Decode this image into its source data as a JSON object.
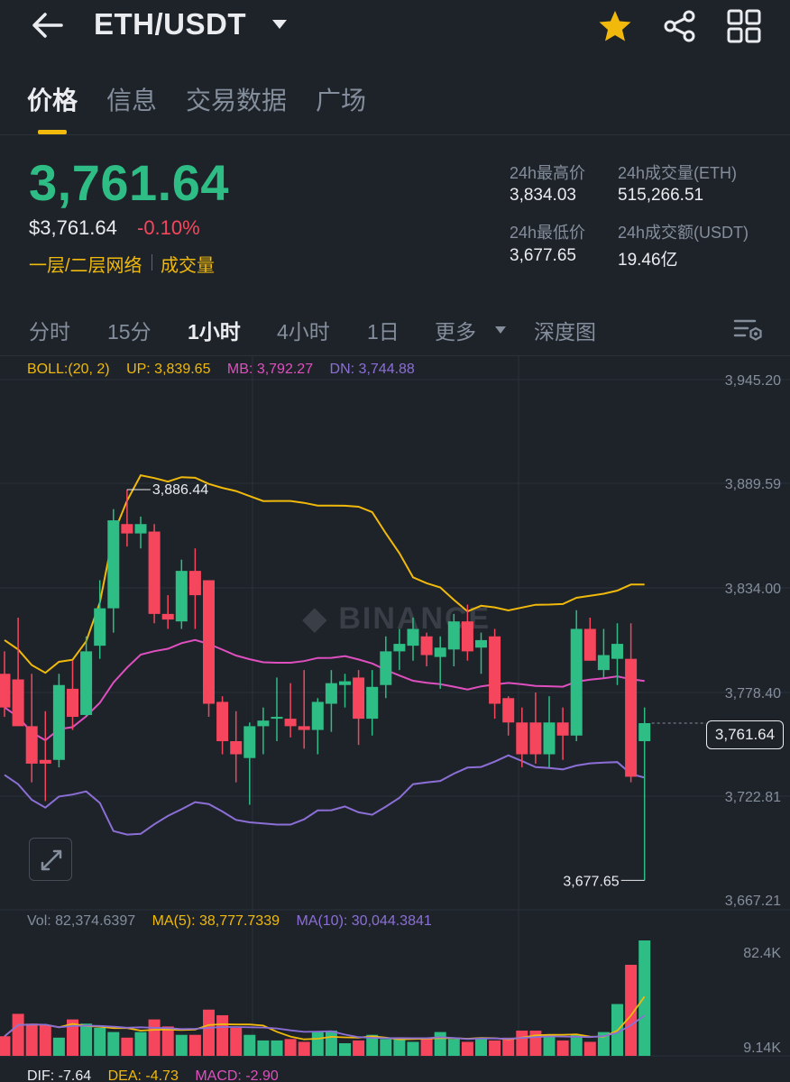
{
  "header": {
    "pair": "ETH/USDT",
    "icons": [
      "back-arrow-icon",
      "caret-down-icon",
      "star-icon",
      "share-icon",
      "grid-icon"
    ],
    "star_color": "#f0b90b"
  },
  "tabs": [
    {
      "label": "价格",
      "active": true
    },
    {
      "label": "信息",
      "active": false
    },
    {
      "label": "交易数据",
      "active": false
    },
    {
      "label": "广场",
      "active": false
    }
  ],
  "price": {
    "last": "3,761.64",
    "usd": "$3,761.64",
    "change": "-0.10%",
    "tag_network": "一层/二层网络",
    "tag_volume": "成交量"
  },
  "stats": {
    "high_label": "24h最高价",
    "high_value": "3,834.03",
    "low_label": "24h最低价",
    "low_value": "3,677.65",
    "vol_eth_label": "24h成交量(ETH)",
    "vol_eth_value": "515,266.51",
    "vol_usdt_label": "24h成交额(USDT)",
    "vol_usdt_value": "19.46亿"
  },
  "intervals": [
    {
      "label": "分时",
      "active": false
    },
    {
      "label": "15分",
      "active": false
    },
    {
      "label": "1小时",
      "active": true
    },
    {
      "label": "4小时",
      "active": false
    },
    {
      "label": "1日",
      "active": false
    },
    {
      "label": "更多",
      "active": false
    },
    {
      "label": "深度图",
      "active": false
    }
  ],
  "indicators": {
    "boll": "BOLL:(20, 2)",
    "up": "UP: 3,839.65",
    "mb": "MB: 3,792.27",
    "dn": "DN: 3,744.88",
    "vol": "Vol: 82,374.6397",
    "ma5": "MA(5): 38,777.7339",
    "ma10": "MA(10): 30,044.3841",
    "dif": "DIF: -7.64",
    "dea": "DEA: -4.73",
    "macd": "MACD: -2.90"
  },
  "colors": {
    "up": "#2ebd85",
    "down": "#f6465d",
    "accent": "#f0b90b",
    "mb": "#e04fbf",
    "dn": "#8c6fd6",
    "bg": "#1e2329"
  },
  "watermark": "BINANCE",
  "chart_data": {
    "type": "candlestick",
    "price_axis": [
      "3,945.20",
      "3,889.59",
      "3,834.00",
      "3,778.40",
      "3,722.81",
      "3,667.21"
    ],
    "ylim": [
      3667.21,
      3945.2
    ],
    "high_marker": "3,886.44",
    "low_marker": "3,677.65",
    "last_price_label": "3,761.64",
    "volume_axis": [
      "82.4K",
      "9.14K"
    ],
    "candles": [
      {
        "o": 3788,
        "h": 3800,
        "l": 3765,
        "c": 3770
      },
      {
        "o": 3785,
        "h": 3818,
        "l": 3762,
        "c": 3760
      },
      {
        "o": 3760,
        "h": 3788,
        "l": 3730,
        "c": 3740
      },
      {
        "o": 3742,
        "h": 3768,
        "l": 3720,
        "c": 3740
      },
      {
        "o": 3742,
        "h": 3788,
        "l": 3738,
        "c": 3782
      },
      {
        "o": 3780,
        "h": 3795,
        "l": 3758,
        "c": 3765
      },
      {
        "o": 3766,
        "h": 3808,
        "l": 3765,
        "c": 3800
      },
      {
        "o": 3803,
        "h": 3838,
        "l": 3796,
        "c": 3823
      },
      {
        "o": 3823,
        "h": 3876,
        "l": 3810,
        "c": 3870
      },
      {
        "o": 3868,
        "h": 3886.44,
        "l": 3856,
        "c": 3863
      },
      {
        "o": 3863,
        "h": 3872,
        "l": 3855,
        "c": 3868
      },
      {
        "o": 3864,
        "h": 3868,
        "l": 3815,
        "c": 3820
      },
      {
        "o": 3820,
        "h": 3830,
        "l": 3812,
        "c": 3817
      },
      {
        "o": 3816,
        "h": 3849,
        "l": 3812,
        "c": 3843
      },
      {
        "o": 3843,
        "h": 3855,
        "l": 3812,
        "c": 3830
      },
      {
        "o": 3838,
        "h": 3838,
        "l": 3765,
        "c": 3772
      },
      {
        "o": 3773,
        "h": 3776,
        "l": 3745,
        "c": 3752
      },
      {
        "o": 3752,
        "h": 3768,
        "l": 3730,
        "c": 3745
      },
      {
        "o": 3743,
        "h": 3762,
        "l": 3718,
        "c": 3760
      },
      {
        "o": 3760,
        "h": 3770,
        "l": 3745,
        "c": 3763
      },
      {
        "o": 3764,
        "h": 3786,
        "l": 3752,
        "c": 3765
      },
      {
        "o": 3764,
        "h": 3783,
        "l": 3754,
        "c": 3760
      },
      {
        "o": 3760,
        "h": 3790,
        "l": 3748,
        "c": 3758
      },
      {
        "o": 3758,
        "h": 3775,
        "l": 3745,
        "c": 3773
      },
      {
        "o": 3772,
        "h": 3790,
        "l": 3757,
        "c": 3783
      },
      {
        "o": 3782,
        "h": 3788,
        "l": 3770,
        "c": 3784
      },
      {
        "o": 3786,
        "h": 3790,
        "l": 3750,
        "c": 3764
      },
      {
        "o": 3764,
        "h": 3790,
        "l": 3755,
        "c": 3781
      },
      {
        "o": 3782,
        "h": 3808,
        "l": 3775,
        "c": 3800
      },
      {
        "o": 3800,
        "h": 3812,
        "l": 3790,
        "c": 3804
      },
      {
        "o": 3803,
        "h": 3818,
        "l": 3795,
        "c": 3812
      },
      {
        "o": 3808,
        "h": 3810,
        "l": 3792,
        "c": 3798
      },
      {
        "o": 3797,
        "h": 3808,
        "l": 3780,
        "c": 3802
      },
      {
        "o": 3801,
        "h": 3820,
        "l": 3792,
        "c": 3816
      },
      {
        "o": 3816,
        "h": 3825,
        "l": 3795,
        "c": 3800
      },
      {
        "o": 3802,
        "h": 3810,
        "l": 3788,
        "c": 3806
      },
      {
        "o": 3808,
        "h": 3812,
        "l": 3764,
        "c": 3772
      },
      {
        "o": 3775,
        "h": 3776,
        "l": 3755,
        "c": 3762
      },
      {
        "o": 3762,
        "h": 3770,
        "l": 3738,
        "c": 3745
      },
      {
        "o": 3762,
        "h": 3778,
        "l": 3740,
        "c": 3745
      },
      {
        "o": 3745,
        "h": 3776,
        "l": 3738,
        "c": 3762
      },
      {
        "o": 3762,
        "h": 3770,
        "l": 3742,
        "c": 3755
      },
      {
        "o": 3755,
        "h": 3822,
        "l": 3752,
        "c": 3812
      },
      {
        "o": 3812,
        "h": 3818,
        "l": 3795,
        "c": 3795
      },
      {
        "o": 3790,
        "h": 3812,
        "l": 3786,
        "c": 3798
      },
      {
        "o": 3796,
        "h": 3815,
        "l": 3782,
        "c": 3804
      },
      {
        "o": 3796,
        "h": 3815,
        "l": 3730,
        "c": 3733
      },
      {
        "o": 3752,
        "h": 3770,
        "l": 3677.65,
        "c": 3761.64
      }
    ],
    "volumes": [
      14,
      30,
      23,
      22,
      13,
      26,
      23,
      20,
      17,
      13,
      17,
      26,
      21,
      15,
      15,
      33,
      29,
      20,
      15,
      11,
      11,
      12,
      10,
      17,
      18,
      9,
      11,
      15,
      12,
      12,
      10,
      12,
      17,
      12,
      10,
      13,
      11,
      13,
      18,
      18,
      15,
      11,
      15,
      10,
      17,
      37,
      65,
      82.4
    ]
  }
}
